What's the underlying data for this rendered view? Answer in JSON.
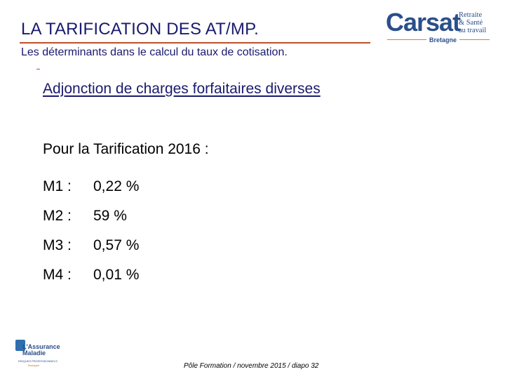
{
  "header": {
    "title": "LA TARIFICATION DES AT/MP.",
    "subtitle": "Les déterminants dans le calcul du taux de cotisation."
  },
  "logo_carsat": {
    "word": "Carsat",
    "side_lines": [
      "Retraite",
      "& Santé",
      "au travail"
    ],
    "region": "Bretagne",
    "color": "#2a4f8a"
  },
  "content": {
    "heading": "Adjonction de charges forfaitaires diverses",
    "intro": "Pour la Tarification 2016 :",
    "rates": [
      {
        "label": "M1 :",
        "value": "0,22 %"
      },
      {
        "label": "M2 :",
        "value": "59 %"
      },
      {
        "label": "M3 :",
        "value": "0,57 %"
      },
      {
        "label": "M4 :",
        "value": "0,01 %"
      }
    ]
  },
  "logo_assurance_maladie": {
    "lines": [
      "L'Assurance",
      "Maladie"
    ],
    "sub": "RISQUES PROFESSIONNELS",
    "region": "Bretagne"
  },
  "footer": {
    "text": "Pôle Formation / novembre 2015 / diapo 32"
  }
}
